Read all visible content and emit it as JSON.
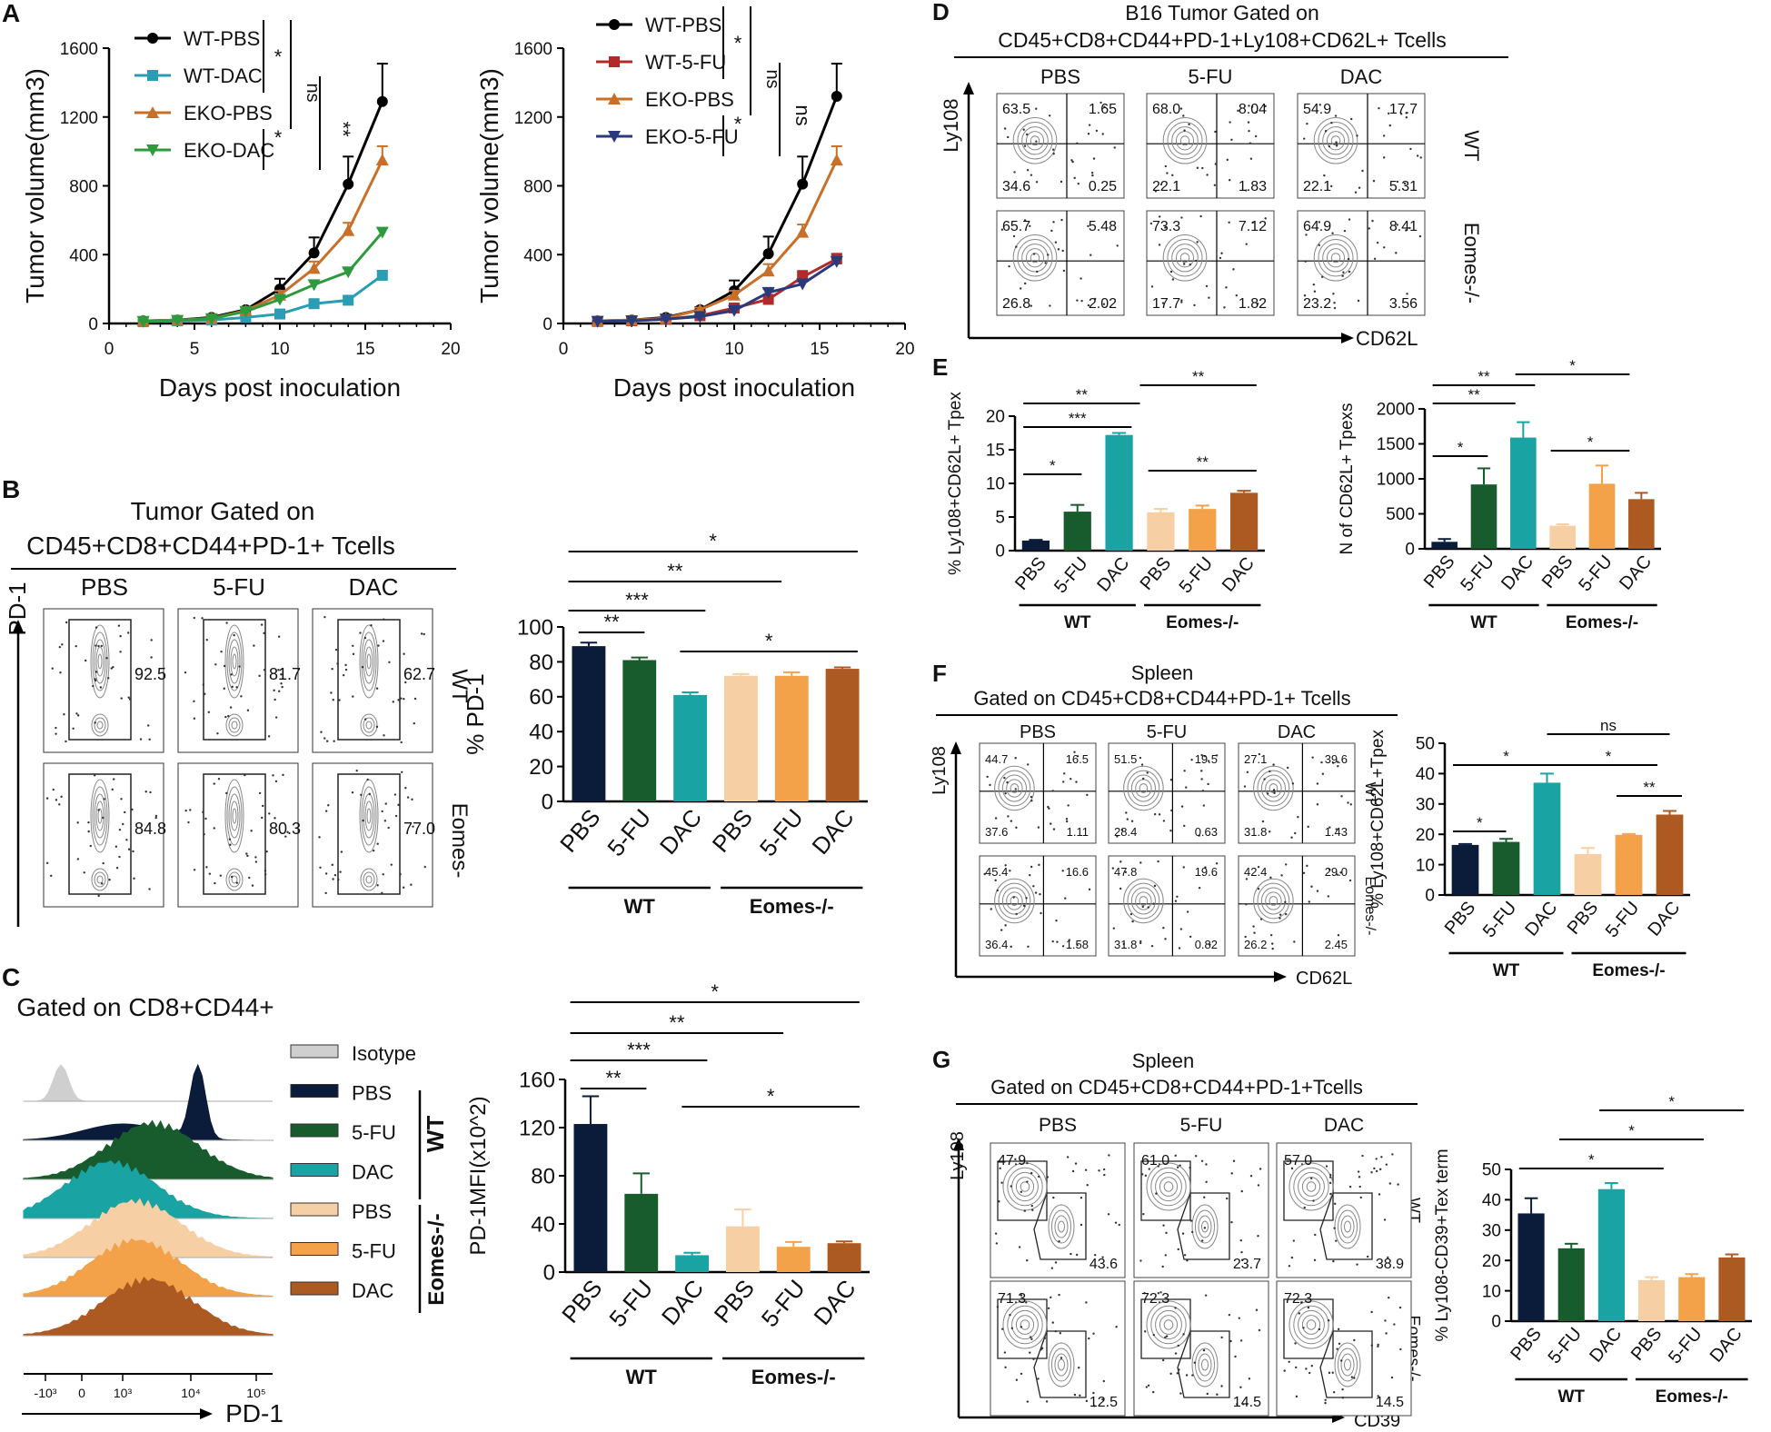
{
  "colors": {
    "wt_pbs": "#000000",
    "wt_dac_line": "#2a9db5",
    "eko_pbs_line": "#c8702a",
    "eko_dac_line": "#2e9a3e",
    "wt_5fu_line": "#b22b2b",
    "eko_5fu_line": "#2b3a7a",
    "bar_pbs_wt": "#0b1b3a",
    "bar_5fu_wt": "#185c2e",
    "bar_dac_wt": "#1aa3a3",
    "bar_pbs_ko": "#f7cfa4",
    "bar_5fu_ko": "#f3a24a",
    "bar_dac_ko": "#ad5a22",
    "iso": "#cfcfcf"
  },
  "panels": {
    "A": "A",
    "B": "B",
    "C": "C",
    "D": "D",
    "E": "E",
    "F": "F",
    "G": "G"
  },
  "chart_data": [
    {
      "id": "A1",
      "type": "line",
      "title": "",
      "xlabel": "Days post inoculation",
      "ylabel": "Tumor volume(mm3)",
      "xlim": [
        0,
        20
      ],
      "ylim": [
        0,
        1600
      ],
      "xticks": [
        "0",
        "5",
        "10",
        "15",
        "20"
      ],
      "yticks": [
        "0",
        "400",
        "800",
        "1200",
        "1600"
      ],
      "x": [
        2,
        4,
        6,
        8,
        10,
        12,
        14,
        16
      ],
      "series": [
        {
          "name": "WT-PBS",
          "marker": "circle",
          "values": [
            15,
            20,
            35,
            80,
            200,
            410,
            810,
            1290
          ],
          "err": [
            5,
            5,
            8,
            15,
            60,
            90,
            160,
            220
          ]
        },
        {
          "name": "WT-DAC",
          "marker": "square",
          "values": [
            10,
            15,
            20,
            35,
            55,
            115,
            135,
            280
          ],
          "err": [
            3,
            3,
            5,
            8,
            10,
            20,
            20,
            25
          ]
        },
        {
          "name": "EKO-PBS",
          "marker": "triangle-up",
          "values": [
            15,
            20,
            30,
            75,
            165,
            320,
            540,
            950
          ],
          "err": [
            5,
            5,
            6,
            12,
            25,
            40,
            45,
            80
          ]
        },
        {
          "name": "EKO-DAC",
          "marker": "triangle-down",
          "values": [
            12,
            18,
            28,
            70,
            140,
            225,
            300,
            530
          ],
          "err": [
            3,
            4,
            5,
            10,
            15,
            20,
            20,
            25
          ]
        }
      ],
      "sig": [
        "*",
        "ns",
        "*",
        "**"
      ]
    },
    {
      "id": "A2",
      "type": "line",
      "xlabel": "Days post inoculation",
      "ylabel": "Tumor volume(mm3)",
      "xlim": [
        0,
        20
      ],
      "ylim": [
        0,
        1600
      ],
      "xticks": [
        "0",
        "5",
        "10",
        "15",
        "20"
      ],
      "yticks": [
        "0",
        "400",
        "800",
        "1200",
        "1600"
      ],
      "x": [
        2,
        4,
        6,
        8,
        10,
        12,
        14,
        16
      ],
      "series": [
        {
          "name": "WT-PBS",
          "marker": "circle",
          "values": [
            15,
            20,
            35,
            80,
            190,
            405,
            810,
            1320
          ],
          "err": [
            5,
            5,
            8,
            15,
            60,
            100,
            160,
            190
          ]
        },
        {
          "name": "WT-5-FU",
          "marker": "square",
          "values": [
            12,
            16,
            25,
            45,
            90,
            140,
            270,
            375
          ],
          "err": [
            3,
            4,
            5,
            8,
            15,
            25,
            35,
            30
          ]
        },
        {
          "name": "EKO-PBS",
          "marker": "triangle-up",
          "values": [
            15,
            20,
            30,
            80,
            165,
            305,
            530,
            950
          ],
          "err": [
            5,
            5,
            6,
            12,
            25,
            40,
            45,
            80
          ]
        },
        {
          "name": "EKO-5-FU",
          "marker": "triangle-down",
          "values": [
            12,
            15,
            25,
            40,
            75,
            180,
            230,
            360
          ],
          "err": [
            3,
            4,
            5,
            8,
            12,
            20,
            25,
            25
          ]
        }
      ],
      "sig": [
        "*",
        "ns",
        "*",
        "ns"
      ]
    },
    {
      "id": "Bbar",
      "type": "bar",
      "ylabel": "% PD-1",
      "ylim": [
        0,
        100
      ],
      "yticks": [
        "0",
        "20",
        "40",
        "60",
        "80",
        "100"
      ],
      "categories": [
        "PBS",
        "5-FU",
        "DAC",
        "PBS",
        "5-FU",
        "DAC"
      ],
      "values": [
        89,
        81,
        61,
        72,
        72,
        76
      ],
      "err": [
        2,
        1.5,
        1.5,
        1,
        2,
        0.8
      ],
      "groups": [
        "WT",
        "Eomes-/-"
      ],
      "sig": [
        "*",
        "**",
        "***",
        "**",
        "*"
      ]
    },
    {
      "id": "Cbar",
      "type": "bar",
      "ylabel": "PD-1MFI(x10^2)",
      "ylim": [
        0,
        160
      ],
      "yticks": [
        "0",
        "40",
        "80",
        "120",
        "160"
      ],
      "categories": [
        "PBS",
        "5-FU",
        "DAC",
        "PBS",
        "5-FU",
        "DAC"
      ],
      "values": [
        123,
        65,
        14,
        38,
        21,
        24
      ],
      "err": [
        23,
        17,
        2,
        14,
        4,
        1.5
      ],
      "groups": [
        "WT",
        "Eomes-/-"
      ],
      "sig": [
        "*",
        "**",
        "***",
        "**",
        "*"
      ]
    },
    {
      "id": "E1",
      "type": "bar",
      "ylabel": "% Ly108+CD62L+ Tpex",
      "ylim": [
        0,
        20
      ],
      "yticks": [
        "0",
        "5",
        "10",
        "15",
        "20"
      ],
      "categories": [
        "PBS",
        "5-FU",
        "DAC",
        "PBS",
        "5-FU",
        "DAC"
      ],
      "values": [
        1.5,
        5.8,
        17.2,
        5.7,
        6.2,
        8.6
      ],
      "err": [
        0.1,
        1.0,
        0.3,
        0.5,
        0.5,
        0.3
      ],
      "groups": [
        "WT",
        "Eomes-/-"
      ],
      "sig": [
        "**",
        "**",
        "***",
        "*",
        "**"
      ]
    },
    {
      "id": "E2",
      "type": "bar",
      "ylabel": "N of CD62L+ Tpexs",
      "ylim": [
        0,
        2000
      ],
      "yticks": [
        "0",
        "500",
        "1000",
        "1500",
        "2000"
      ],
      "categories": [
        "PBS",
        "5-FU",
        "DAC",
        "PBS",
        "5-FU",
        "DAC"
      ],
      "values": [
        100,
        920,
        1590,
        330,
        930,
        710
      ],
      "err": [
        40,
        230,
        220,
        20,
        260,
        90
      ],
      "groups": [
        "WT",
        "Eomes-/-"
      ],
      "sig": [
        "**",
        "*",
        "**",
        "*",
        "*"
      ]
    },
    {
      "id": "Fbar",
      "type": "bar",
      "ylabel": "% Ly108+CD62L+Tpex",
      "ylim": [
        0,
        50
      ],
      "yticks": [
        "0",
        "10",
        "20",
        "30",
        "40",
        "50"
      ],
      "categories": [
        "PBS",
        "5-FU",
        "DAC",
        "PBS",
        "5-FU",
        "DAC"
      ],
      "values": [
        16.5,
        17.5,
        37,
        13.5,
        19.8,
        26.5
      ],
      "err": [
        0.3,
        1.0,
        3.0,
        2.0,
        0.3,
        1.2
      ],
      "groups": [
        "WT",
        "Eomes-/-"
      ],
      "sig": [
        "ns",
        "*",
        "*",
        "**",
        "*"
      ]
    },
    {
      "id": "Gbar",
      "type": "bar",
      "ylabel": "% Ly108-CD39+Tex term",
      "ylim": [
        0,
        50
      ],
      "yticks": [
        "0",
        "10",
        "20",
        "30",
        "40",
        "50"
      ],
      "categories": [
        "PBS",
        "5-FU",
        "DAC",
        "PBS",
        "5-FU",
        "DAC"
      ],
      "values": [
        35.5,
        24,
        43.5,
        13.5,
        14.5,
        21
      ],
      "err": [
        5,
        1.5,
        2,
        1,
        1,
        1
      ],
      "groups": [
        "WT",
        "Eomes-/-"
      ],
      "sig": [
        "*",
        "*",
        "*"
      ]
    }
  ],
  "flow_B": {
    "title_line1": "Tumor Gated on",
    "title_line2": "CD45+CD8+CD44+PD-1+ Tcells",
    "cols": [
      "PBS",
      "5-FU",
      "DAC"
    ],
    "rows": [
      "WT",
      "Eomes-"
    ],
    "yaxis": "PD-1",
    "values": [
      [
        "92.5",
        "81.7",
        "62.7"
      ],
      [
        "84.8",
        "80.3",
        "77.0"
      ]
    ]
  },
  "flow_C": {
    "title": "Gated on CD8+CD44+",
    "legend": [
      "Isotype",
      "PBS",
      "5-FU",
      "DAC",
      "PBS",
      "5-FU",
      "DAC"
    ],
    "group_wt": "WT",
    "group_ko": "Eomes-/-",
    "xaxis": "PD-1",
    "xticks": [
      "-10³",
      "0",
      "10³",
      "10⁴",
      "10⁵"
    ]
  },
  "flow_D": {
    "title_line1": "B16 Tumor Gated on",
    "title_line2": "CD45+CD8+CD44+PD-1+Ly108+CD62L+ Tcells",
    "cols": [
      "PBS",
      "5-FU",
      "DAC"
    ],
    "rows": [
      "WT",
      "Eomes-/-"
    ],
    "yaxis": "Ly108",
    "xaxis": "CD62L",
    "values": [
      [
        [
          "63.5",
          "1.65",
          "34.6",
          "0.25"
        ],
        [
          "68.0",
          "8.04",
          "22.1",
          "1.83"
        ],
        [
          "54.9",
          "17.7",
          "22.1",
          "5.31"
        ]
      ],
      [
        [
          "65.7",
          "5.48",
          "26.8",
          "2.02"
        ],
        [
          "73.3",
          "7.12",
          "17.7",
          "1.82"
        ],
        [
          "64.9",
          "8.41",
          "23.2",
          "3.56"
        ]
      ]
    ]
  },
  "flow_F": {
    "title_line1": "Spleen",
    "title_line2": "Gated on CD45+CD8+CD44+PD-1+ Tcells",
    "cols": [
      "PBS",
      "5-FU",
      "DAC"
    ],
    "rows": [
      "WT",
      "Eomes-/-"
    ],
    "yaxis": "Ly108",
    "xaxis": "CD62L",
    "values": [
      [
        [
          "44.7",
          "16.5",
          "37.6",
          "1.11"
        ],
        [
          "51.5",
          "19.5",
          "28.4",
          "0.63"
        ],
        [
          "27.1",
          "39.6",
          "31.8",
          "1.43"
        ]
      ],
      [
        [
          "45.4",
          "16.6",
          "36.4",
          "1.58"
        ],
        [
          "47.8",
          "19.6",
          "31.8",
          "0.82"
        ],
        [
          "42.4",
          "29.0",
          "26.2",
          "2.45"
        ]
      ]
    ]
  },
  "flow_G": {
    "title_line1": "Spleen",
    "title_line2": "Gated on CD45+CD8+CD44+PD-1+Tcells",
    "cols": [
      "PBS",
      "5-FU",
      "DAC"
    ],
    "rows": [
      "WT",
      "Eomes-/-"
    ],
    "yaxis": "Ly108",
    "xaxis": "CD39",
    "values": [
      [
        [
          "47.9",
          "43.6"
        ],
        [
          "61.0",
          "23.7"
        ],
        [
          "57.0",
          "38.9"
        ]
      ],
      [
        [
          "71.3",
          "12.5"
        ],
        [
          "72.3",
          "14.5"
        ],
        [
          "72.3",
          "14.5"
        ]
      ]
    ]
  }
}
